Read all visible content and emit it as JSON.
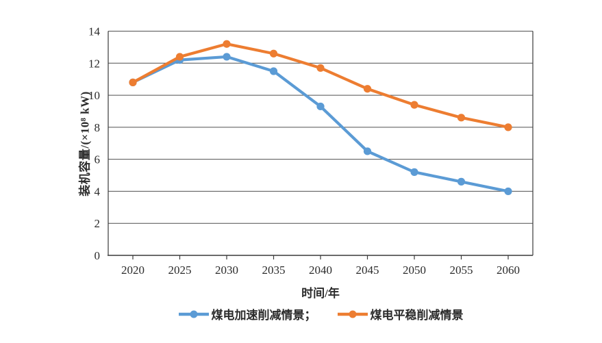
{
  "chart_data": {
    "type": "line",
    "title": "",
    "xlabel": "时间/年",
    "ylabel": "装机容量/(×10⁸ kW)",
    "categories": [
      "2020",
      "2025",
      "2030",
      "2035",
      "2040",
      "2045",
      "2050",
      "2055",
      "2060"
    ],
    "series": [
      {
        "name": "煤电加速削减情景；",
        "color": "#5B9BD5",
        "values": [
          10.8,
          12.2,
          12.4,
          11.5,
          9.3,
          6.5,
          5.2,
          4.6,
          4.0
        ]
      },
      {
        "name": "煤电平稳削减情景",
        "color": "#ED7D31",
        "values": [
          10.8,
          12.4,
          13.2,
          12.6,
          11.7,
          10.4,
          9.4,
          8.6,
          8.0
        ]
      }
    ],
    "ylim": [
      0,
      14
    ],
    "ytick_step": 2,
    "yticks": [
      0,
      2,
      4,
      6,
      8,
      10,
      12,
      14
    ],
    "grid": "horizontal",
    "legend_position": "bottom",
    "axis_color": "#3a3a3a",
    "grid_color": "#4f4f4f",
    "text_color": "#2b2b2b",
    "background": "#ffffff"
  }
}
